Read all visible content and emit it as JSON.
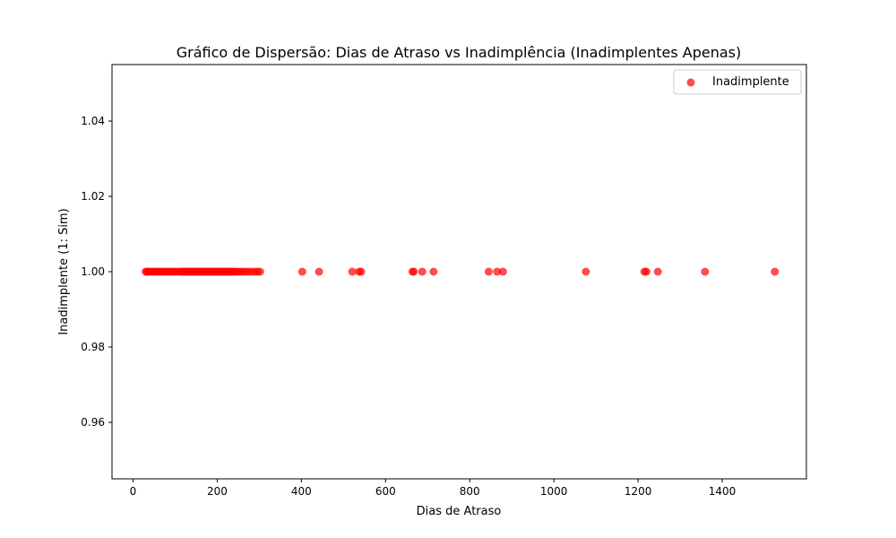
{
  "chart_data": {
    "type": "scatter",
    "title": "Gráfico de Dispersão: Dias de Atraso vs Inadimplência (Inadimplentes Apenas)",
    "xlabel": "Dias de Atraso",
    "ylabel": "Inadimplente (1: Sim)",
    "xlim": [
      -50,
      1600
    ],
    "ylim": [
      0.945,
      1.055
    ],
    "xticks": [
      0,
      200,
      400,
      600,
      800,
      1000,
      1200,
      1400
    ],
    "yticks": [
      0.96,
      0.98,
      1.0,
      1.02,
      1.04
    ],
    "ytick_labels": [
      "0.96",
      "0.98",
      "1.00",
      "1.02",
      "1.04"
    ],
    "grid": false,
    "legend_position": "upper right",
    "series": [
      {
        "name": "Inadimplente",
        "color": "#ff0000",
        "alpha": 0.7,
        "marker": "circle",
        "x": [
          30,
          33,
          36,
          40,
          44,
          48,
          52,
          56,
          60,
          65,
          70,
          75,
          80,
          85,
          90,
          95,
          100,
          105,
          110,
          115,
          118,
          121,
          124,
          127,
          130,
          133,
          136,
          139,
          142,
          145,
          148,
          151,
          154,
          157,
          160,
          163,
          166,
          169,
          172,
          175,
          178,
          181,
          184,
          187,
          190,
          193,
          196,
          199,
          202,
          205,
          208,
          211,
          214,
          217,
          220,
          223,
          226,
          229,
          232,
          236,
          240,
          245,
          250,
          256,
          262,
          268,
          275,
          282,
          290,
          296,
          302,
          402,
          442,
          521,
          537,
          542,
          664,
          667,
          687,
          714,
          845,
          865,
          879,
          1076,
          1215,
          1220,
          1247,
          1359,
          1525
        ],
        "y": [
          1,
          1,
          1,
          1,
          1,
          1,
          1,
          1,
          1,
          1,
          1,
          1,
          1,
          1,
          1,
          1,
          1,
          1,
          1,
          1,
          1,
          1,
          1,
          1,
          1,
          1,
          1,
          1,
          1,
          1,
          1,
          1,
          1,
          1,
          1,
          1,
          1,
          1,
          1,
          1,
          1,
          1,
          1,
          1,
          1,
          1,
          1,
          1,
          1,
          1,
          1,
          1,
          1,
          1,
          1,
          1,
          1,
          1,
          1,
          1,
          1,
          1,
          1,
          1,
          1,
          1,
          1,
          1,
          1,
          1,
          1,
          1,
          1,
          1,
          1,
          1,
          1,
          1,
          1,
          1,
          1,
          1,
          1,
          1,
          1,
          1,
          1,
          1,
          1
        ]
      }
    ]
  }
}
